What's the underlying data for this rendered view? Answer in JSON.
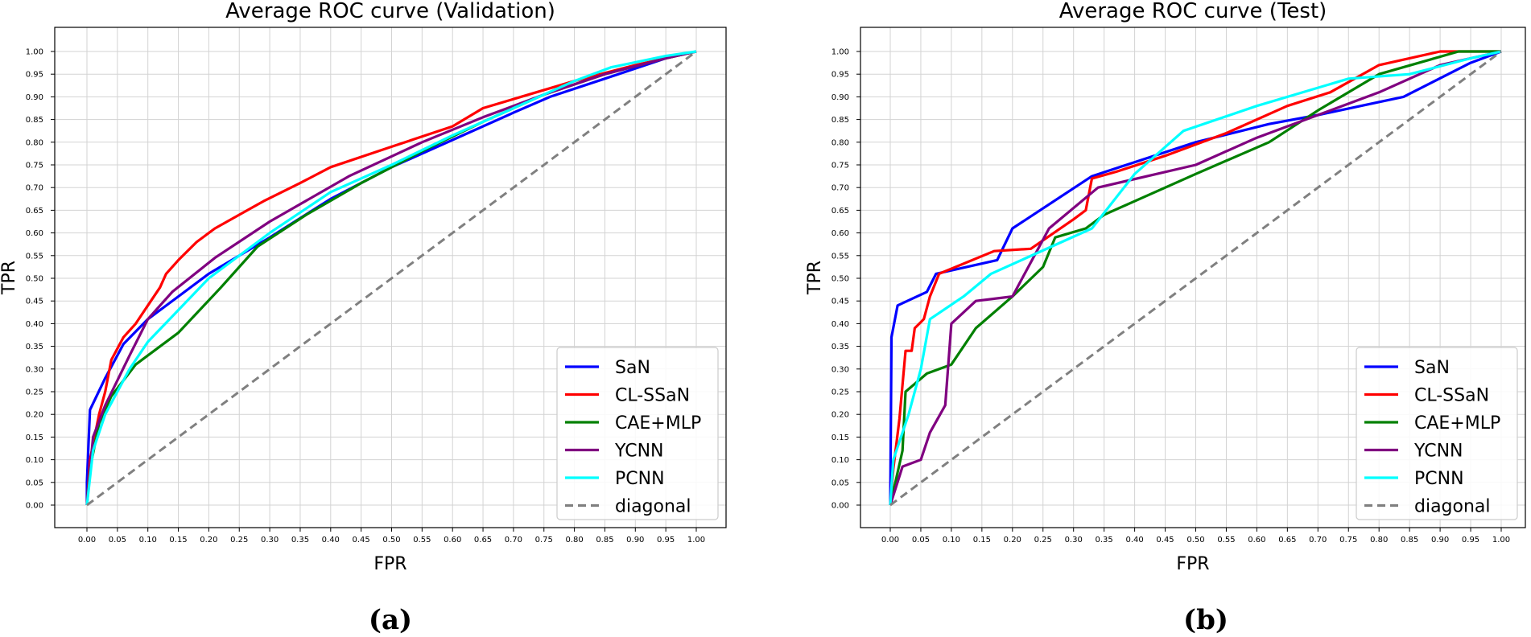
{
  "captions": [
    "(a)",
    "(b)"
  ],
  "chart_data": [
    {
      "type": "line",
      "title": "Average ROC curve (Validation)",
      "xlabel": "FPR",
      "ylabel": "TPR",
      "xlim": [
        0,
        1
      ],
      "ylim": [
        0,
        1
      ],
      "ticks": [
        "0.00",
        "0.05",
        "0.10",
        "0.15",
        "0.20",
        "0.25",
        "0.30",
        "0.35",
        "0.40",
        "0.45",
        "0.50",
        "0.55",
        "0.60",
        "0.65",
        "0.70",
        "0.75",
        "0.80",
        "0.85",
        "0.90",
        "0.95",
        "1.00"
      ],
      "grid": true,
      "legend_position": "lower-right",
      "series": [
        {
          "name": "SaN",
          "color": "#0000ff",
          "dashed": false,
          "points": [
            [
              0,
              0
            ],
            [
              0,
              0.05
            ],
            [
              0.003,
              0.15
            ],
            [
              0.005,
              0.21
            ],
            [
              0.03,
              0.28
            ],
            [
              0.06,
              0.355
            ],
            [
              0.1,
              0.41
            ],
            [
              0.15,
              0.46
            ],
            [
              0.2,
              0.51
            ],
            [
              0.3,
              0.59
            ],
            [
              0.4,
              0.675
            ],
            [
              0.5,
              0.745
            ],
            [
              0.6,
              0.805
            ],
            [
              0.7,
              0.865
            ],
            [
              0.76,
              0.9
            ],
            [
              0.85,
              0.94
            ],
            [
              0.95,
              0.985
            ],
            [
              1,
              1
            ]
          ]
        },
        {
          "name": "CL-SSaN",
          "color": "#ff0000",
          "dashed": false,
          "points": [
            [
              0,
              0
            ],
            [
              0.005,
              0.1
            ],
            [
              0.02,
              0.2
            ],
            [
              0.03,
              0.25
            ],
            [
              0.04,
              0.32
            ],
            [
              0.06,
              0.37
            ],
            [
              0.08,
              0.4
            ],
            [
              0.1,
              0.44
            ],
            [
              0.12,
              0.48
            ],
            [
              0.13,
              0.51
            ],
            [
              0.15,
              0.54
            ],
            [
              0.18,
              0.58
            ],
            [
              0.21,
              0.61
            ],
            [
              0.25,
              0.64
            ],
            [
              0.29,
              0.67
            ],
            [
              0.35,
              0.71
            ],
            [
              0.4,
              0.745
            ],
            [
              0.5,
              0.79
            ],
            [
              0.6,
              0.835
            ],
            [
              0.65,
              0.875
            ],
            [
              0.7,
              0.895
            ],
            [
              0.8,
              0.935
            ],
            [
              0.9,
              0.97
            ],
            [
              1,
              1
            ]
          ]
        },
        {
          "name": "CAE+MLP",
          "color": "#008000",
          "dashed": false,
          "points": [
            [
              0,
              0
            ],
            [
              0.005,
              0.08
            ],
            [
              0.02,
              0.18
            ],
            [
              0.04,
              0.24
            ],
            [
              0.08,
              0.31
            ],
            [
              0.15,
              0.38
            ],
            [
              0.22,
              0.48
            ],
            [
              0.28,
              0.57
            ],
            [
              0.36,
              0.64
            ],
            [
              0.45,
              0.71
            ],
            [
              0.55,
              0.78
            ],
            [
              0.65,
              0.845
            ],
            [
              0.75,
              0.905
            ],
            [
              0.85,
              0.95
            ],
            [
              0.95,
              0.985
            ],
            [
              1,
              1
            ]
          ]
        },
        {
          "name": "YCNN",
          "color": "#800080",
          "dashed": false,
          "points": [
            [
              0,
              0
            ],
            [
              0.01,
              0.15
            ],
            [
              0.03,
              0.22
            ],
            [
              0.07,
              0.33
            ],
            [
              0.1,
              0.41
            ],
            [
              0.14,
              0.47
            ],
            [
              0.21,
              0.545
            ],
            [
              0.3,
              0.625
            ],
            [
              0.43,
              0.725
            ],
            [
              0.55,
              0.8
            ],
            [
              0.65,
              0.855
            ],
            [
              0.75,
              0.905
            ],
            [
              0.85,
              0.95
            ],
            [
              0.95,
              0.985
            ],
            [
              1,
              1
            ]
          ]
        },
        {
          "name": "PCNN",
          "color": "#00ffff",
          "dashed": false,
          "points": [
            [
              0,
              0
            ],
            [
              0.01,
              0.12
            ],
            [
              0.03,
              0.2
            ],
            [
              0.07,
              0.3
            ],
            [
              0.1,
              0.36
            ],
            [
              0.15,
              0.43
            ],
            [
              0.2,
              0.5
            ],
            [
              0.3,
              0.6
            ],
            [
              0.4,
              0.69
            ],
            [
              0.5,
              0.75
            ],
            [
              0.6,
              0.815
            ],
            [
              0.7,
              0.875
            ],
            [
              0.8,
              0.935
            ],
            [
              0.86,
              0.965
            ],
            [
              0.95,
              0.99
            ],
            [
              1,
              1
            ]
          ]
        },
        {
          "name": "diagonal",
          "color": "#808080",
          "dashed": true,
          "points": [
            [
              0,
              0
            ],
            [
              1,
              1
            ]
          ]
        }
      ]
    },
    {
      "type": "line",
      "title": "Average ROC curve (Test)",
      "xlabel": "FPR",
      "ylabel": "TPR",
      "xlim": [
        0,
        1
      ],
      "ylim": [
        0,
        1
      ],
      "ticks": [
        "0.00",
        "0.05",
        "0.10",
        "0.15",
        "0.20",
        "0.25",
        "0.30",
        "0.35",
        "0.40",
        "0.45",
        "0.50",
        "0.55",
        "0.60",
        "0.65",
        "0.70",
        "0.75",
        "0.80",
        "0.85",
        "0.90",
        "0.95",
        "1.00"
      ],
      "grid": true,
      "legend_position": "lower-right",
      "series": [
        {
          "name": "SaN",
          "color": "#0000ff",
          "dashed": false,
          "points": [
            [
              0,
              0
            ],
            [
              0.002,
              0.37
            ],
            [
              0.012,
              0.44
            ],
            [
              0.06,
              0.47
            ],
            [
              0.075,
              0.51
            ],
            [
              0.175,
              0.54
            ],
            [
              0.2,
              0.61
            ],
            [
              0.33,
              0.725
            ],
            [
              0.5,
              0.8
            ],
            [
              0.62,
              0.84
            ],
            [
              0.7,
              0.86
            ],
            [
              0.84,
              0.9
            ],
            [
              0.95,
              0.975
            ],
            [
              1,
              1
            ]
          ]
        },
        {
          "name": "CL-SSaN",
          "color": "#ff0000",
          "dashed": false,
          "points": [
            [
              0,
              0
            ],
            [
              0.005,
              0.08
            ],
            [
              0.015,
              0.19
            ],
            [
              0.025,
              0.34
            ],
            [
              0.035,
              0.34
            ],
            [
              0.04,
              0.39
            ],
            [
              0.055,
              0.41
            ],
            [
              0.065,
              0.46
            ],
            [
              0.08,
              0.51
            ],
            [
              0.17,
              0.56
            ],
            [
              0.23,
              0.565
            ],
            [
              0.3,
              0.63
            ],
            [
              0.32,
              0.65
            ],
            [
              0.33,
              0.72
            ],
            [
              0.37,
              0.735
            ],
            [
              0.45,
              0.77
            ],
            [
              0.55,
              0.82
            ],
            [
              0.65,
              0.88
            ],
            [
              0.72,
              0.91
            ],
            [
              0.8,
              0.97
            ],
            [
              0.9,
              1
            ],
            [
              1,
              1
            ]
          ]
        },
        {
          "name": "CAE+MLP",
          "color": "#008000",
          "dashed": false,
          "points": [
            [
              0,
              0
            ],
            [
              0.02,
              0.12
            ],
            [
              0.025,
              0.25
            ],
            [
              0.06,
              0.29
            ],
            [
              0.1,
              0.31
            ],
            [
              0.14,
              0.39
            ],
            [
              0.2,
              0.46
            ],
            [
              0.25,
              0.525
            ],
            [
              0.27,
              0.59
            ],
            [
              0.32,
              0.61
            ],
            [
              0.35,
              0.64
            ],
            [
              0.5,
              0.73
            ],
            [
              0.62,
              0.8
            ],
            [
              0.7,
              0.87
            ],
            [
              0.8,
              0.95
            ],
            [
              0.93,
              1
            ],
            [
              1,
              1
            ]
          ]
        },
        {
          "name": "YCNN",
          "color": "#800080",
          "dashed": false,
          "points": [
            [
              0,
              0
            ],
            [
              0.02,
              0.085
            ],
            [
              0.05,
              0.1
            ],
            [
              0.065,
              0.16
            ],
            [
              0.09,
              0.22
            ],
            [
              0.1,
              0.4
            ],
            [
              0.14,
              0.45
            ],
            [
              0.2,
              0.46
            ],
            [
              0.26,
              0.61
            ],
            [
              0.34,
              0.7
            ],
            [
              0.5,
              0.75
            ],
            [
              0.6,
              0.81
            ],
            [
              0.7,
              0.86
            ],
            [
              0.8,
              0.91
            ],
            [
              0.9,
              0.97
            ],
            [
              1,
              1
            ]
          ]
        },
        {
          "name": "PCNN",
          "color": "#00ffff",
          "dashed": false,
          "points": [
            [
              0,
              0
            ],
            [
              0.005,
              0.1
            ],
            [
              0.03,
              0.2
            ],
            [
              0.05,
              0.3
            ],
            [
              0.065,
              0.41
            ],
            [
              0.12,
              0.46
            ],
            [
              0.165,
              0.51
            ],
            [
              0.33,
              0.61
            ],
            [
              0.4,
              0.73
            ],
            [
              0.48,
              0.825
            ],
            [
              0.6,
              0.88
            ],
            [
              0.75,
              0.94
            ],
            [
              0.85,
              0.95
            ],
            [
              0.95,
              0.985
            ],
            [
              1,
              1
            ]
          ]
        },
        {
          "name": "diagonal",
          "color": "#808080",
          "dashed": true,
          "points": [
            [
              0,
              0
            ],
            [
              1,
              1
            ]
          ]
        }
      ]
    }
  ]
}
